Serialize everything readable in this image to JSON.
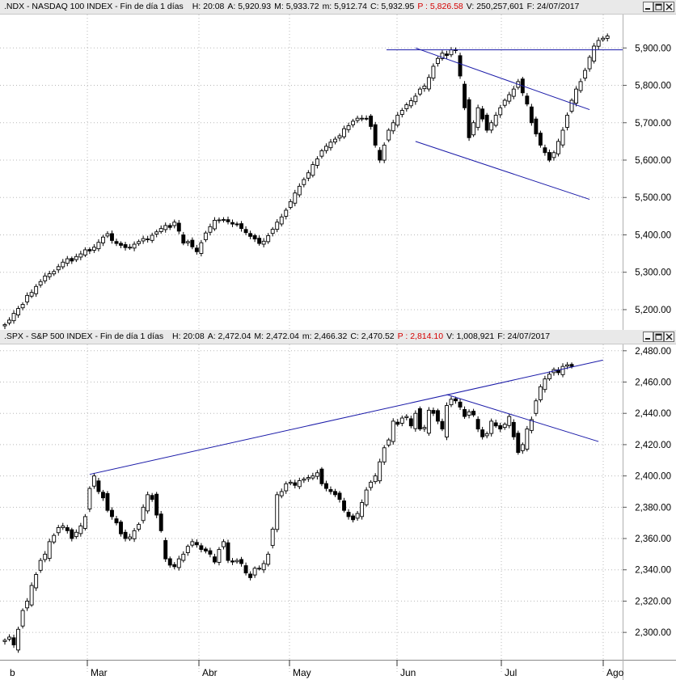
{
  "chart_data": [
    {
      "type": "candlestick",
      "header": {
        "symbol": ".NDX - NASDAQ 100 INDEX - Fin de día 1 días",
        "fields": [
          {
            "label": "H:",
            "value": "20:08"
          },
          {
            "label": "A:",
            "value": "5,920.93"
          },
          {
            "label": "M:",
            "value": "5,933.72"
          },
          {
            "label": "m:",
            "value": "5,912.74"
          },
          {
            "label": "C:",
            "value": "5,932.95"
          },
          {
            "label": "P :",
            "value": "5,826.58",
            "color": "#d40000"
          },
          {
            "label": "V:",
            "value": "250,257,601"
          },
          {
            "label": "F:",
            "value": "24/07/2017"
          }
        ]
      },
      "yticks": [
        "5,200.00",
        "5,300.00",
        "5,400.00",
        "5,500.00",
        "5,600.00",
        "5,700.00",
        "5,800.00",
        "5,900.00"
      ],
      "ylim": [
        5135,
        5985
      ],
      "close": [
        5160,
        5172,
        5190,
        5203,
        5214,
        5238,
        5246,
        5262,
        5275,
        5290,
        5296,
        5302,
        5315,
        5327,
        5336,
        5330,
        5342,
        5349,
        5360,
        5357,
        5367,
        5380,
        5394,
        5403,
        5385,
        5377,
        5372,
        5366,
        5367,
        5375,
        5382,
        5390,
        5387,
        5399,
        5408,
        5417,
        5425,
        5420,
        5434,
        5410,
        5378,
        5382,
        5368,
        5355,
        5379,
        5405,
        5422,
        5439,
        5440,
        5441,
        5435,
        5429,
        5427,
        5417,
        5406,
        5396,
        5389,
        5377,
        5383,
        5398,
        5415,
        5434,
        5448,
        5466,
        5489,
        5512,
        5530,
        5548,
        5566,
        5588,
        5603,
        5625,
        5637,
        5648,
        5656,
        5665,
        5684,
        5692,
        5704,
        5712,
        5712,
        5711,
        5690,
        5640,
        5600,
        5640,
        5680,
        5700,
        5720,
        5733,
        5748,
        5759,
        5771,
        5790,
        5798,
        5821,
        5851,
        5872,
        5886,
        5880,
        5895,
        5893,
        5825,
        5740,
        5660,
        5700,
        5740,
        5710,
        5680,
        5700,
        5720,
        5740,
        5760,
        5775,
        5790,
        5810,
        5780,
        5750,
        5700,
        5670,
        5640,
        5620,
        5600,
        5620,
        5650,
        5680,
        5720,
        5760,
        5790,
        5810,
        5840,
        5875,
        5905,
        5920,
        5926,
        5932
      ],
      "annotations": {
        "horizontal_resistance": 5895,
        "channel_upper": [
          {
            "x": 92,
            "y": 5900
          },
          {
            "x": 131,
            "y": 5735
          }
        ],
        "channel_lower": [
          {
            "x": 92,
            "y": 5650
          },
          {
            "x": 131,
            "y": 5495
          }
        ]
      }
    },
    {
      "type": "candlestick",
      "header": {
        "symbol": ".SPX - S&P 500 INDEX - Fin de día 1 días",
        "fields": [
          {
            "label": "H:",
            "value": "20:08"
          },
          {
            "label": "A:",
            "value": "2,472.04"
          },
          {
            "label": "M:",
            "value": "2,472.04"
          },
          {
            "label": "m:",
            "value": "2,466.32"
          },
          {
            "label": "C:",
            "value": "2,470.52"
          },
          {
            "label": "P :",
            "value": "2,814.10",
            "color": "#d40000"
          },
          {
            "label": "V:",
            "value": "1,008,921"
          },
          {
            "label": "F:",
            "value": "24/07/2017"
          }
        ]
      },
      "yticks": [
        "2,300.00",
        "2,320.00",
        "2,340.00",
        "2,360.00",
        "2,380.00",
        "2,400.00",
        "2,420.00",
        "2,440.00",
        "2,460.00",
        "2,480.00"
      ],
      "ylim": [
        2282.5,
        2483
      ],
      "close": [
        2295,
        2297,
        2292,
        2302,
        2314,
        2320,
        2330,
        2337,
        2346,
        2350,
        2358,
        2362,
        2367,
        2368,
        2365,
        2360,
        2364,
        2368,
        2374,
        2392,
        2400,
        2390,
        2386,
        2378,
        2374,
        2370,
        2363,
        2360,
        2361,
        2365,
        2369,
        2380,
        2388,
        2385,
        2375,
        2365,
        2347,
        2343,
        2342,
        2347,
        2350,
        2355,
        2358,
        2356,
        2353,
        2352,
        2350,
        2345,
        2353,
        2358,
        2346,
        2345,
        2346,
        2344,
        2338,
        2335,
        2341,
        2341,
        2344,
        2350,
        2366,
        2388,
        2390,
        2395,
        2396,
        2394,
        2397,
        2398,
        2399,
        2400,
        2402,
        2395,
        2392,
        2390,
        2388,
        2385,
        2378,
        2374,
        2372,
        2376,
        2383,
        2391,
        2396,
        2400,
        2409,
        2418,
        2423,
        2435,
        2433,
        2437,
        2438,
        2432,
        2440,
        2430,
        2431,
        2442,
        2440,
        2435,
        2430,
        2445,
        2449,
        2448,
        2444,
        2438,
        2441,
        2439,
        2430,
        2425,
        2427,
        2435,
        2432,
        2430,
        2433,
        2438,
        2425,
        2415,
        2420,
        2430,
        2436,
        2448,
        2457,
        2462,
        2465,
        2468,
        2466,
        2470,
        2471,
        2470
      ],
      "annotations": {
        "long_trendline": [
          {
            "x": 19,
            "y": 2401
          },
          {
            "x": 134,
            "y": 2474
          }
        ],
        "short_trendline": [
          {
            "x": 99,
            "y": 2452
          },
          {
            "x": 133,
            "y": 2422
          }
        ]
      }
    }
  ],
  "x_axis": {
    "labels": [
      {
        "text": "b",
        "pos": 0
      },
      {
        "text": "Mar",
        "pos": 19
      },
      {
        "text": "Abr",
        "pos": 42
      },
      {
        "text": "May",
        "pos": 62
      },
      {
        "text": "Jun",
        "pos": 85
      },
      {
        "text": "Jul",
        "pos": 107
      },
      {
        "text": "Ago",
        "pos": 130
      }
    ]
  },
  "grid": true
}
